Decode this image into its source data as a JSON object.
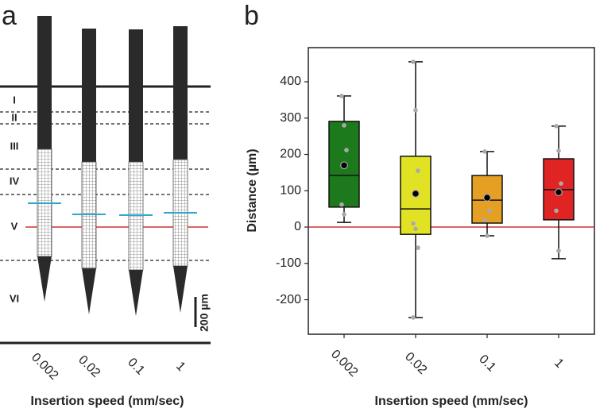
{
  "panel_labels": [
    "a",
    "b"
  ],
  "diagram": {
    "layers": [
      "I",
      "II",
      "III",
      "IV",
      "V",
      "VI"
    ],
    "categories": [
      "0.002",
      "0.02",
      "0.1",
      "1"
    ],
    "xlabel": "Insertion speed (mm/sec)",
    "scale_bar": "200 µm"
  },
  "chart_data": {
    "type": "box",
    "categories": [
      "0.002",
      "0.02",
      "0.1",
      "1"
    ],
    "colors": [
      "#1c7a1c",
      "#e2e225",
      "#e5a024",
      "#e02424"
    ],
    "whisker_low": [
      13,
      -249,
      -24,
      -87
    ],
    "q1": [
      55,
      -20,
      11,
      20
    ],
    "median": [
      142,
      50,
      74,
      103
    ],
    "q3": [
      291,
      195,
      142,
      188
    ],
    "whisker_high": [
      361,
      455,
      208,
      278
    ],
    "mean": [
      170,
      92,
      81,
      96
    ],
    "points": [
      [
        361,
        280,
        212,
        62,
        35
      ],
      [
        455,
        322,
        155,
        10,
        -5,
        -57,
        -249
      ],
      [
        208,
        80,
        45,
        20,
        -24
      ],
      [
        278,
        210,
        120,
        45,
        -65
      ]
    ],
    "reference_line": 0,
    "reference_color": "#d03030",
    "ylabel": "Distance (µm)",
    "xlabel": "Insertion speed (mm/sec)",
    "ylim": [
      -295,
      494
    ],
    "yticks": [
      -200,
      -100,
      0,
      100,
      200,
      300,
      400
    ]
  }
}
